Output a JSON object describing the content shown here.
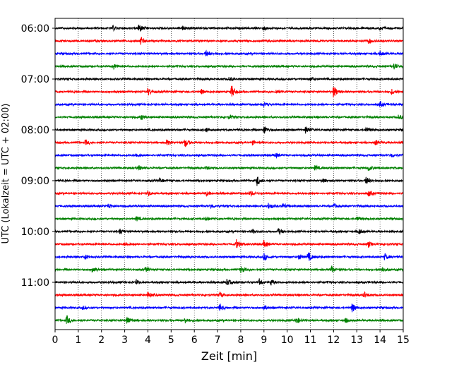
{
  "chart_data": {
    "type": "line",
    "title": "",
    "xlabel": "Zeit  [min]",
    "ylabel": "UTC (Lokalzeit = UTC + 02:00)",
    "xlim": [
      0,
      15
    ],
    "x_ticks": [
      0,
      1,
      2,
      3,
      4,
      5,
      6,
      7,
      8,
      9,
      10,
      11,
      12,
      13,
      14,
      15
    ],
    "x_tick_labels": [
      "0",
      "1",
      "2",
      "3",
      "4",
      "5",
      "6",
      "7",
      "8",
      "9",
      "10",
      "11",
      "12",
      "13",
      "14",
      "15"
    ],
    "y_tick_labels": [
      "06:00",
      "07:00",
      "08:00",
      "09:00",
      "10:00",
      "11:00"
    ],
    "row_minutes": 15,
    "row_start_labels": [
      "06:00",
      "06:15",
      "06:30",
      "06:45",
      "07:00",
      "07:15",
      "07:30",
      "07:45",
      "08:00",
      "08:15",
      "08:30",
      "08:45",
      "09:00",
      "09:15",
      "09:30",
      "09:45",
      "10:00",
      "10:15",
      "10:30",
      "10:45",
      "11:00",
      "11:15",
      "11:30",
      "11:45"
    ],
    "row_colors": [
      "#000000",
      "#ff0000",
      "#0000ff",
      "#008000"
    ],
    "grid": "vertical dotted",
    "events": [
      [
        [
          3.6,
          1.2
        ],
        [
          2.5,
          0.5
        ],
        [
          5.5,
          0.5
        ],
        [
          9.0,
          0.4
        ],
        [
          14.0,
          0.5
        ]
      ],
      [
        [
          3.7,
          1.0
        ],
        [
          13.5,
          0.6
        ]
      ],
      [
        [
          6.5,
          0.7
        ],
        [
          14.0,
          0.5
        ],
        [
          15.0,
          0.5
        ]
      ],
      [
        [
          2.5,
          0.7
        ],
        [
          14.6,
          0.8
        ]
      ],
      [
        [
          7.5,
          0.5
        ],
        [
          11.0,
          0.4
        ]
      ],
      [
        [
          7.6,
          1.6
        ],
        [
          12.0,
          1.5
        ],
        [
          4.0,
          0.9
        ],
        [
          6.3,
          0.6
        ],
        [
          9.5,
          0.5
        ],
        [
          14.5,
          0.6
        ]
      ],
      [
        [
          9.0,
          0.6
        ],
        [
          14.0,
          0.6
        ]
      ],
      [
        [
          3.7,
          0.6
        ],
        [
          7.5,
          0.5
        ],
        [
          14.8,
          0.6
        ]
      ],
      [
        [
          9.0,
          1.0
        ],
        [
          10.8,
          0.9
        ],
        [
          13.4,
          0.7
        ],
        [
          6.5,
          0.5
        ]
      ],
      [
        [
          5.6,
          1.1
        ],
        [
          1.3,
          0.6
        ],
        [
          13.8,
          0.6
        ],
        [
          4.8,
          0.6
        ],
        [
          8.5,
          0.4
        ]
      ],
      [
        [
          3.5,
          0.5
        ],
        [
          9.5,
          0.5
        ],
        [
          14.5,
          0.5
        ]
      ],
      [
        [
          3.6,
          0.6
        ],
        [
          11.2,
          0.6
        ],
        [
          13.5,
          0.6
        ],
        [
          6.5,
          0.4
        ]
      ],
      [
        [
          8.7,
          1.2
        ],
        [
          13.4,
          0.9
        ],
        [
          4.5,
          0.6
        ],
        [
          11.5,
          0.5
        ]
      ],
      [
        [
          4.0,
          0.6
        ],
        [
          8.4,
          0.6
        ],
        [
          13.5,
          0.7
        ],
        [
          6.5,
          0.5
        ]
      ],
      [
        [
          9.2,
          0.8
        ],
        [
          2.3,
          0.6
        ],
        [
          6.7,
          0.6
        ],
        [
          9.8,
          0.6
        ],
        [
          12.0,
          0.5
        ]
      ],
      [
        [
          3.5,
          0.6
        ],
        [
          6.5,
          0.5
        ],
        [
          13.0,
          0.5
        ]
      ],
      [
        [
          9.6,
          0.8
        ],
        [
          13.1,
          0.6
        ],
        [
          2.8,
          0.6
        ],
        [
          8.5,
          0.5
        ]
      ],
      [
        [
          7.8,
          1.1
        ],
        [
          9.0,
          0.8
        ],
        [
          13.5,
          0.7
        ],
        [
          3.0,
          0.5
        ]
      ],
      [
        [
          10.9,
          1.2
        ],
        [
          9.0,
          0.8
        ],
        [
          14.2,
          0.8
        ],
        [
          1.3,
          0.6
        ],
        [
          10.5,
          0.6
        ]
      ],
      [
        [
          1.6,
          0.9
        ],
        [
          3.9,
          0.6
        ],
        [
          8.0,
          0.8
        ],
        [
          11.9,
          0.9
        ],
        [
          14.1,
          0.6
        ]
      ],
      [
        [
          7.4,
          0.8
        ],
        [
          8.8,
          0.7
        ],
        [
          9.3,
          0.7
        ],
        [
          3.5,
          0.5
        ]
      ],
      [
        [
          4.0,
          0.7
        ],
        [
          7.1,
          0.6
        ],
        [
          13.3,
          0.7
        ]
      ],
      [
        [
          7.1,
          0.9
        ],
        [
          9.0,
          0.6
        ],
        [
          12.8,
          1.1
        ],
        [
          1.2,
          0.4
        ]
      ],
      [
        [
          0.5,
          1.1
        ],
        [
          3.1,
          1.0
        ],
        [
          5.6,
          0.7
        ],
        [
          10.4,
          0.8
        ],
        [
          12.5,
          0.5
        ]
      ]
    ]
  }
}
